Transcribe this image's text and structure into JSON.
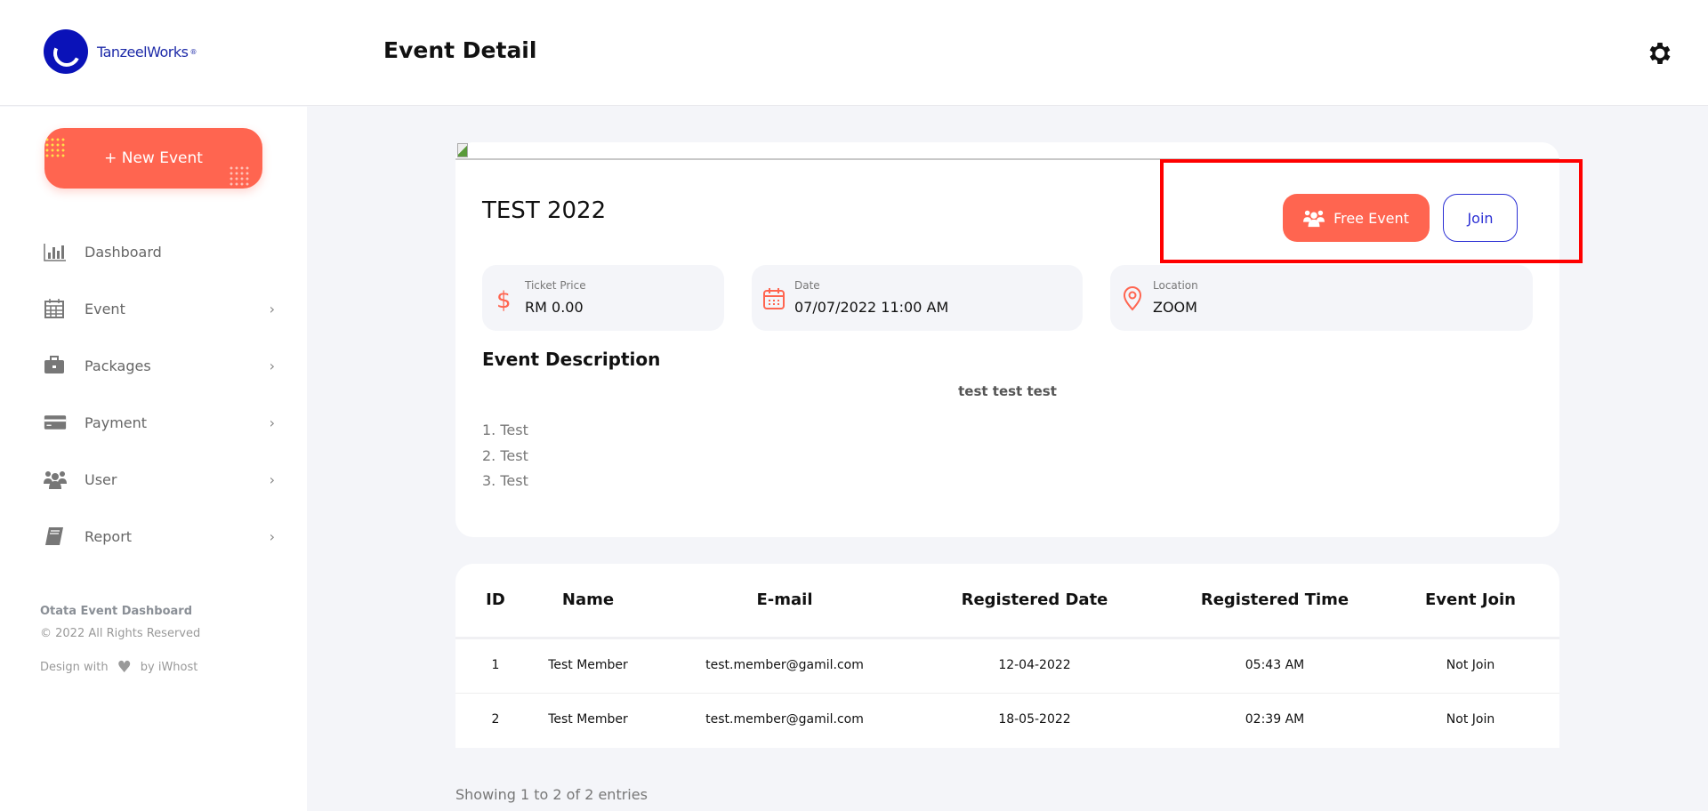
{
  "header": {
    "logo_text": "TanzeelWorks",
    "logo_mark": "®",
    "title": "Event Detail",
    "settings_icon": "gear-icon"
  },
  "sidebar": {
    "new_event": "+ New Event",
    "items": [
      {
        "label": "Dashboard",
        "icon": "bar-chart-icon",
        "has_chevron": false
      },
      {
        "label": "Event",
        "icon": "calendar-icon",
        "has_chevron": true
      },
      {
        "label": "Packages",
        "icon": "briefcase-icon",
        "has_chevron": true
      },
      {
        "label": "Payment",
        "icon": "credit-card-icon",
        "has_chevron": true
      },
      {
        "label": "User",
        "icon": "users-icon",
        "has_chevron": true
      },
      {
        "label": "Report",
        "icon": "book-icon",
        "has_chevron": true
      }
    ],
    "chevron": "›",
    "footer": {
      "brand": "Otata Event Dashboard",
      "copyright": "© 2022 All Rights Reserved",
      "design_with": "Design with",
      "by": "by iWhost"
    }
  },
  "event": {
    "title": "TEST 2022",
    "free_label": "Free Event",
    "join_label": "Join",
    "ticket": {
      "label": "Ticket Price",
      "value": "RM 0.00"
    },
    "date": {
      "label": "Date",
      "value": "07/07/2022 11:00 AM"
    },
    "location": {
      "label": "Location",
      "value": "ZOOM"
    },
    "description_heading": "Event Description",
    "description_center": "test test test",
    "description_list": [
      "1. Test",
      "2. Test",
      "3. Test"
    ],
    "accent": "#ff6550"
  },
  "table": {
    "headers": [
      "ID",
      "Name",
      "E-mail",
      "Registered Date",
      "Registered Time",
      "Event Join"
    ],
    "rows": [
      [
        "1",
        "Test Member",
        "test.member@gamil.com",
        "12-04-2022",
        "05:43 AM",
        "Not Join"
      ],
      [
        "2",
        "Test Member",
        "test.member@gamil.com",
        "18-05-2022",
        "02:39 AM",
        "Not Join"
      ]
    ],
    "showing": "Showing 1 to 2 of 2 entries"
  }
}
